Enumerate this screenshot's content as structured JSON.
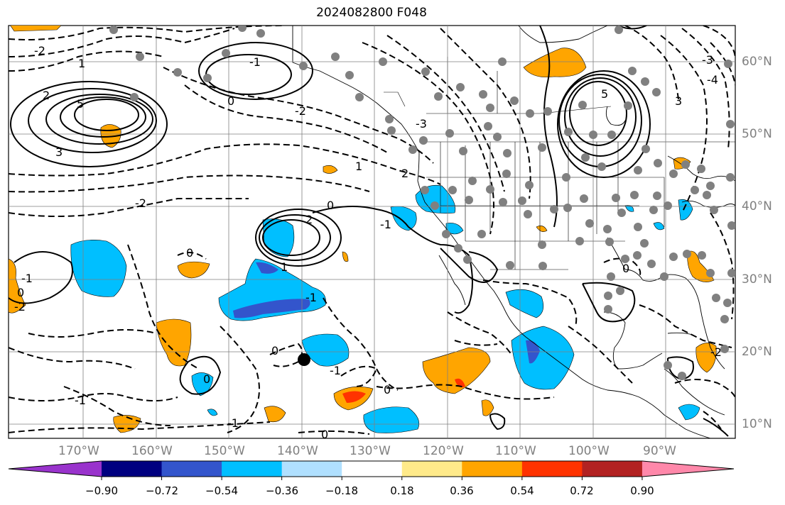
{
  "title": "2024082800 F048",
  "lon_labels": [
    "170°W",
    "160°W",
    "150°W",
    "140°W",
    "130°W",
    "120°W",
    "110°W",
    "100°W",
    "90°W"
  ],
  "lat_labels": [
    "60°N",
    "50°N",
    "40°N",
    "30°N",
    "20°N",
    "10°N"
  ],
  "colorbar": {
    "ticks": [
      "−0.90",
      "−0.72",
      "−0.54",
      "−0.36",
      "−0.18",
      "0.18",
      "0.36",
      "0.54",
      "0.72",
      "0.90"
    ],
    "colors": [
      "#9933cc",
      "#000080",
      "#3355cc",
      "#00bfff",
      "#b0e0ff",
      "#ffffff",
      "#ffea8a",
      "#ffa500",
      "#ff3300",
      "#b22222",
      "#ff88aa"
    ]
  },
  "contour_labels": [
    "-2",
    "1",
    "2",
    "3",
    "5",
    "-1",
    "0",
    "-2",
    "1",
    "2",
    "5",
    "3",
    "-3",
    "-4",
    "-3",
    "2",
    "0",
    "-2",
    "-1",
    "0",
    "1",
    "-1",
    "0",
    "-1",
    "0",
    "-2",
    "0",
    "-2",
    "-1",
    "0",
    "0",
    "-1",
    "-1",
    "0"
  ],
  "colors": {
    "land": "#ffffff",
    "grid": "#808080",
    "contour": "#000000",
    "station": "#808080"
  }
}
